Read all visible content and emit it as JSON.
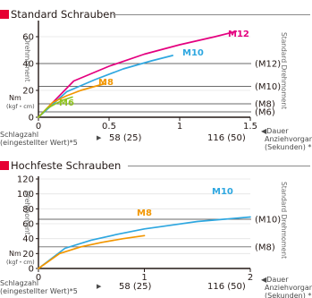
{
  "accent_color": "#e60033",
  "chart_data": [
    {
      "type": "line",
      "title": "Standard Schrauben",
      "ylabel": "Drehmoment",
      "y_unit": "Nm",
      "y_unit_alt": "(kgf・cm)",
      "right_label": "Standard Drehmoment",
      "xlim": [
        0,
        1.5
      ],
      "ylim": [
        0,
        70
      ],
      "x_ticks": [
        "0",
        "0.5",
        "1",
        "1.5"
      ],
      "y_ticks": [
        "0",
        "20",
        "40",
        "60"
      ],
      "x_label_left": "Schlagzahl",
      "x_label_left_sub": "(eingestellter Wert)*5",
      "x_marks": [
        "58 (25)",
        "116 (50)"
      ],
      "x_label_right": "◀Dauer",
      "x_label_right_2": "Anziehvorgang",
      "x_label_right_3": "(Sekunden) *6",
      "series": [
        {
          "name": "M12",
          "color": "#e4007f",
          "x": [
            0,
            0.25,
            0.5,
            0.75,
            1.0,
            1.25,
            1.4
          ],
          "y": [
            0,
            27,
            38,
            47,
            54,
            60,
            64
          ]
        },
        {
          "name": "M10",
          "color": "#2ea7e0",
          "x": [
            0,
            0.2,
            0.4,
            0.6,
            0.8,
            0.95
          ],
          "y": [
            0,
            19,
            28,
            36,
            42,
            46
          ]
        },
        {
          "name": "M8",
          "color": "#f29600",
          "x": [
            0,
            0.1,
            0.2,
            0.3,
            0.4,
            0.47
          ],
          "y": [
            0,
            11,
            16,
            20,
            23,
            25
          ]
        },
        {
          "name": "M6",
          "color": "#8fc31f",
          "x": [
            0,
            0.06,
            0.12,
            0.18,
            0.24
          ],
          "y": [
            0,
            6.5,
            10,
            13,
            15
          ]
        }
      ],
      "reference_lines": [
        {
          "label": "(M12)",
          "y": 40
        },
        {
          "label": "(M10)",
          "y": 23
        },
        {
          "label": "(M8)",
          "y": 10
        },
        {
          "label": "(M6)",
          "y": 4
        }
      ]
    },
    {
      "type": "line",
      "title": "Hochfeste Schrauben",
      "ylabel": "Drehmoment",
      "y_unit": "Nm",
      "y_unit_alt": "(kgf・cm)",
      "right_label": "Standard Drehmoment",
      "xlim": [
        0,
        2
      ],
      "ylim": [
        0,
        120
      ],
      "x_ticks": [
        "0",
        "1",
        "2"
      ],
      "y_ticks": [
        "0",
        "20",
        "40",
        "60",
        "80",
        "100",
        "120"
      ],
      "x_label_left": "Schlagzahl",
      "x_label_left_sub": "(eingestellter Wert)*5",
      "x_marks": [
        "58 (25)",
        "116 (50)"
      ],
      "x_label_right": "◀Dauer",
      "x_label_right_2": "Anziehvorgang",
      "x_label_right_3": "(Sekunden) *6",
      "series": [
        {
          "name": "M10",
          "color": "#2ea7e0",
          "x": [
            0,
            0.25,
            0.5,
            0.75,
            1.0,
            1.25,
            1.5,
            1.75,
            2.0
          ],
          "y": [
            0,
            27,
            38,
            46,
            53,
            58,
            63,
            66,
            69
          ]
        },
        {
          "name": "M8",
          "color": "#f29600",
          "x": [
            0,
            0.2,
            0.4,
            0.6,
            0.8,
            1.0
          ],
          "y": [
            0,
            20,
            29,
            35,
            40,
            44
          ]
        }
      ],
      "reference_lines": [
        {
          "label": "(M10)",
          "y": 66
        },
        {
          "label": "(M8)",
          "y": 29
        }
      ]
    }
  ]
}
